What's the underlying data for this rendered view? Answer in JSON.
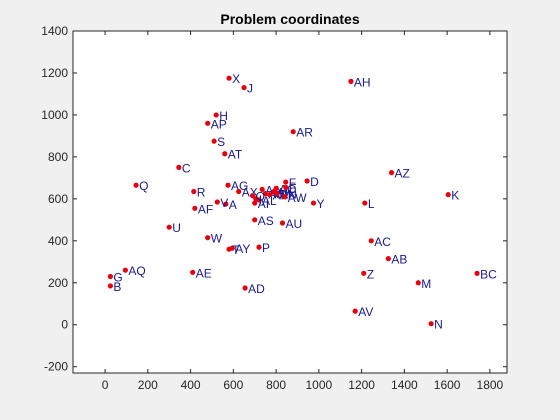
{
  "chart_data": {
    "type": "scatter",
    "title": "Problem coordinates",
    "xlabel": "",
    "ylabel": "",
    "xlim": [
      -150,
      1880
    ],
    "ylim": [
      -230,
      1400
    ],
    "xticks": [
      0,
      200,
      400,
      600,
      800,
      1000,
      1200,
      1400,
      1600,
      1800
    ],
    "yticks": [
      -200,
      0,
      200,
      400,
      600,
      800,
      1000,
      1200,
      1400
    ],
    "grid": false,
    "legend": "none",
    "marker_color": "#e8000b",
    "label_color": "#1a1a8c",
    "points": [
      {
        "label": "A",
        "x": 565,
        "y": 575
      },
      {
        "label": "AA",
        "x": 735,
        "y": 645
      },
      {
        "label": "AB",
        "x": 1325,
        "y": 315
      },
      {
        "label": "AC",
        "x": 1245,
        "y": 400
      },
      {
        "label": "AD",
        "x": 655,
        "y": 175
      },
      {
        "label": "AE",
        "x": 410,
        "y": 250
      },
      {
        "label": "AF",
        "x": 420,
        "y": 555
      },
      {
        "label": "AG",
        "x": 575,
        "y": 665
      },
      {
        "label": "AH",
        "x": 1150,
        "y": 1160
      },
      {
        "label": "AI",
        "x": 700,
        "y": 580
      },
      {
        "label": "AJ",
        "x": 750,
        "y": 625
      },
      {
        "label": "AK",
        "x": 790,
        "y": 635
      },
      {
        "label": "AL",
        "x": 720,
        "y": 595
      },
      {
        "label": "AM",
        "x": 770,
        "y": 620
      },
      {
        "label": "AN",
        "x": 805,
        "y": 625
      },
      {
        "label": "AO",
        "x": 800,
        "y": 650
      },
      {
        "label": "AP",
        "x": 480,
        "y": 960
      },
      {
        "label": "AQ",
        "x": 95,
        "y": 260
      },
      {
        "label": "AR",
        "x": 880,
        "y": 920
      },
      {
        "label": "AS",
        "x": 700,
        "y": 500
      },
      {
        "label": "AT",
        "x": 560,
        "y": 815
      },
      {
        "label": "AU",
        "x": 830,
        "y": 485
      },
      {
        "label": "AV",
        "x": 1170,
        "y": 65
      },
      {
        "label": "AW",
        "x": 840,
        "y": 610
      },
      {
        "label": "AX",
        "x": 625,
        "y": 635
      },
      {
        "label": "AY",
        "x": 595,
        "y": 365
      },
      {
        "label": "AZ",
        "x": 1340,
        "y": 725
      },
      {
        "label": "B",
        "x": 25,
        "y": 185
      },
      {
        "label": "BC",
        "x": 1740,
        "y": 245
      },
      {
        "label": "C",
        "x": 345,
        "y": 750
      },
      {
        "label": "D",
        "x": 945,
        "y": 685
      },
      {
        "label": "E",
        "x": 845,
        "y": 655
      },
      {
        "label": "F",
        "x": 845,
        "y": 680
      },
      {
        "label": "G",
        "x": 25,
        "y": 230
      },
      {
        "label": "H",
        "x": 520,
        "y": 1000
      },
      {
        "label": "I",
        "x": 705,
        "y": 600
      },
      {
        "label": "J",
        "x": 650,
        "y": 1130
      },
      {
        "label": "K",
        "x": 1605,
        "y": 620
      },
      {
        "label": "L",
        "x": 1215,
        "y": 580
      },
      {
        "label": "M",
        "x": 1465,
        "y": 200
      },
      {
        "label": "N",
        "x": 1525,
        "y": 5
      },
      {
        "label": "O",
        "x": 690,
        "y": 615
      },
      {
        "label": "P",
        "x": 720,
        "y": 370
      },
      {
        "label": "Q",
        "x": 145,
        "y": 665
      },
      {
        "label": "R",
        "x": 415,
        "y": 635
      },
      {
        "label": "S",
        "x": 510,
        "y": 875
      },
      {
        "label": "T",
        "x": 580,
        "y": 360
      },
      {
        "label": "U",
        "x": 300,
        "y": 465
      },
      {
        "label": "V",
        "x": 525,
        "y": 585
      },
      {
        "label": "W",
        "x": 480,
        "y": 415
      },
      {
        "label": "X",
        "x": 580,
        "y": 1175
      },
      {
        "label": "Y",
        "x": 975,
        "y": 580
      },
      {
        "label": "Z",
        "x": 1210,
        "y": 245
      }
    ]
  }
}
